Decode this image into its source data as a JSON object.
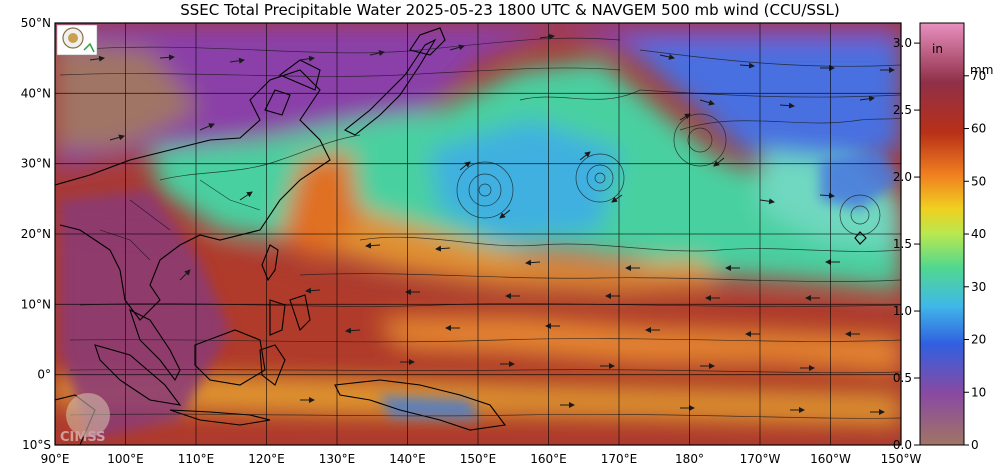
{
  "title": "SSEC Total Precipitable Water  2025-05-23 1800 UTC & NAVGEM 500 mb wind (CCU/SSL)",
  "lat_labels": [
    "50°N",
    "40°N",
    "30°N",
    "20°N",
    "10°N",
    "0°",
    "10°S"
  ],
  "lon_labels": [
    "90°E",
    "100°E",
    "110°E",
    "120°E",
    "130°E",
    "140°E",
    "150°E",
    "160°E",
    "170°E",
    "180°",
    "170°W",
    "160°W",
    "150°W"
  ],
  "colorbar": {
    "inch_unit": "in",
    "mm_unit": "mm",
    "inch_ticks": [
      "0.0",
      "0.5",
      "1.0",
      "1.5",
      "2.0",
      "2.5",
      "3.0"
    ],
    "mm_ticks": [
      "0",
      "10",
      "20",
      "30",
      "40",
      "50",
      "60",
      "70"
    ],
    "colors": [
      "#a07565",
      "#7c3e96",
      "#2060e0",
      "#40b8e8",
      "#50d890",
      "#b8e850",
      "#f0d020",
      "#f08020",
      "#b83018",
      "#903048",
      "#c06090",
      "#e890c0"
    ]
  },
  "logos": {
    "top_left": "emblem-logo",
    "bottom_left": "CIMSS"
  },
  "colors": {
    "humid": "#a83a34",
    "dry": "#8a40a8",
    "moderate": "#48d0a0",
    "land_border": "#000000",
    "arrows": "#1a1a1a"
  }
}
